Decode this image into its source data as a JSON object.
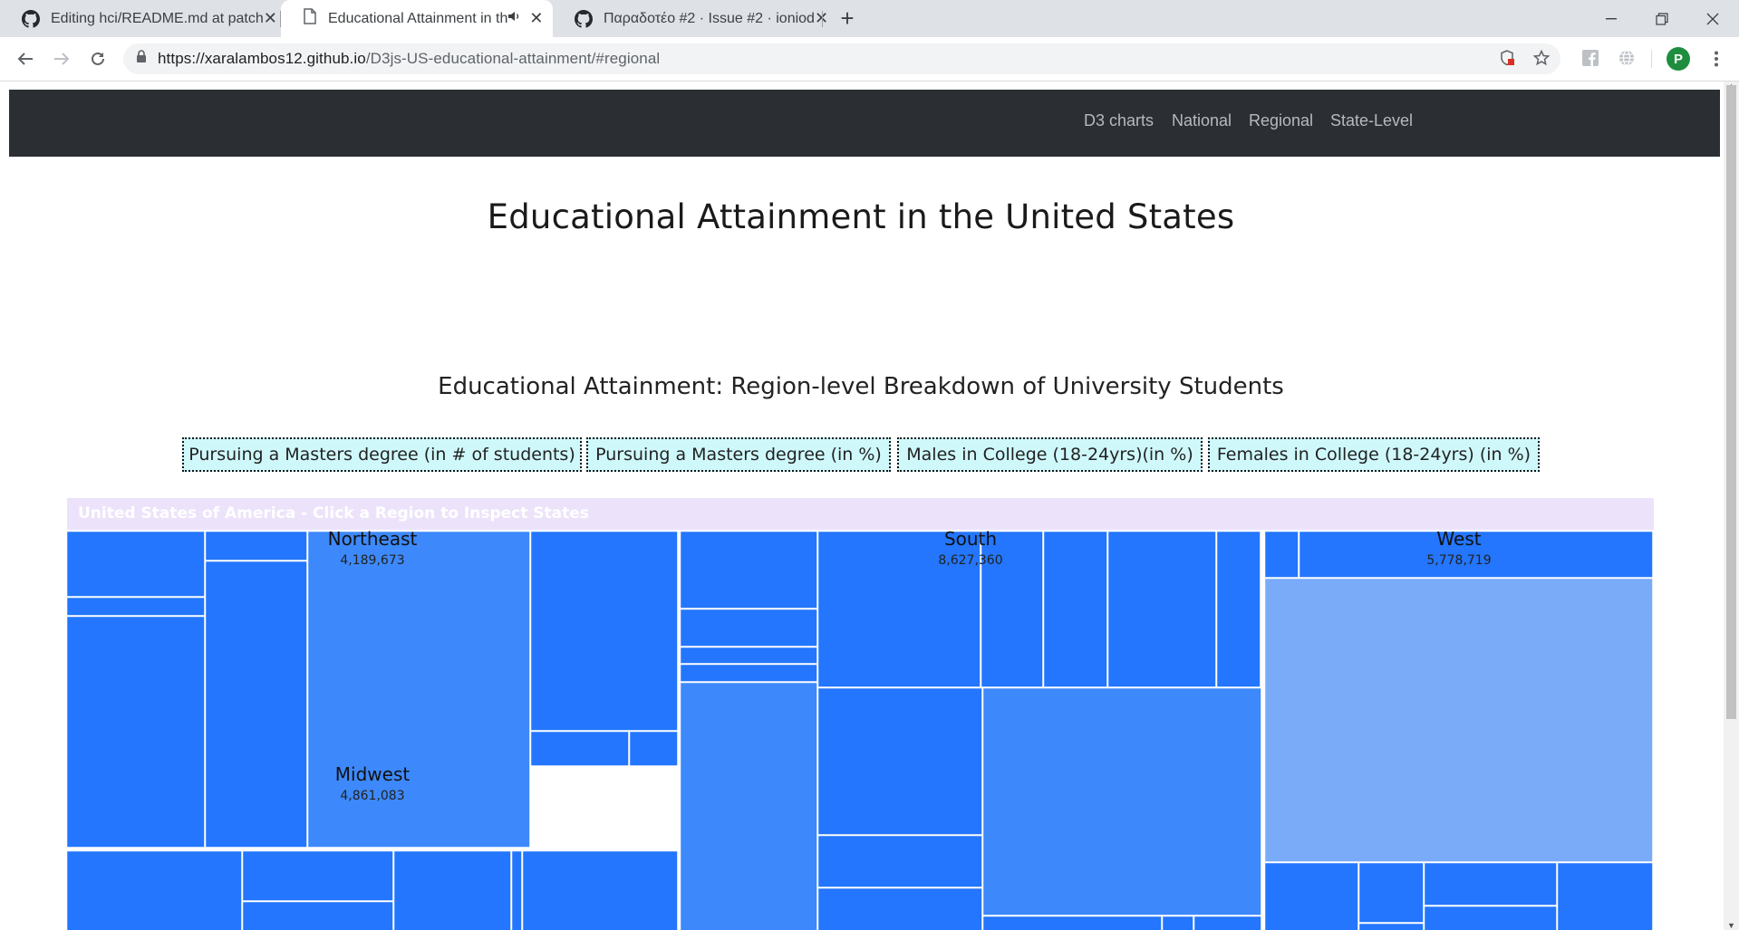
{
  "browser": {
    "tabs": [
      {
        "title": "Editing hci/README.md at patch",
        "icon": "github-icon",
        "active": false
      },
      {
        "title": "Educational Attainment in th",
        "icon": "page-icon",
        "active": true,
        "audio": true
      },
      {
        "title": "Παραδοτέο #2 · Issue #2 · ioniod",
        "icon": "github-icon",
        "active": false
      }
    ],
    "url_host": "https://xaralambos12.github.io",
    "url_path": "/D3js-US-educational-attainment/#regional",
    "profile_initial": "P"
  },
  "site": {
    "nav": [
      "D3 charts",
      "National",
      "Regional",
      "State-Level"
    ],
    "page_title": "Educational Attainment in the United States",
    "section_title": "Educational Attainment: Region-level Breakdown of University Students",
    "filters": [
      "Pursuing a Masters degree (in # of students)",
      "Pursuing a Masters degree (in %)",
      "Males in College (18-24yrs)(in %)",
      "Females in College (18-24yrs) (in %)"
    ],
    "treemap_header": "United States of America - Click a Region to Inspect States"
  },
  "colors": {
    "tile_dark": "#2376fd",
    "tile_medium": "#3d89fb",
    "tile_light": "#79abf9",
    "header_bg": "#ece3fb",
    "button_bg": "#cff8fb"
  },
  "chart_data": {
    "type": "treemap",
    "title": "United States of America - Click a Region to Inspect States",
    "regions": [
      {
        "name": "Northeast",
        "value": 4189673,
        "label": "4,189,673"
      },
      {
        "name": "South",
        "value": 8627360,
        "label": "8,627,360"
      },
      {
        "name": "West",
        "value": 5778719,
        "label": "5,778,719"
      },
      {
        "name": "Midwest",
        "value": 4861083,
        "label": "4,861,083"
      }
    ]
  }
}
